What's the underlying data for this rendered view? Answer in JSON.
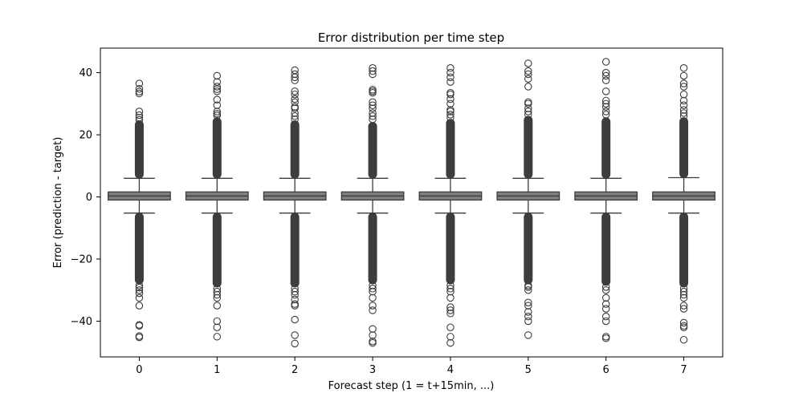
{
  "chart_data": {
    "type": "box",
    "title": "Error distribution per time step",
    "xlabel": "Forecast step (1 = t+15min, ...)",
    "ylabel": "Error (prediction - target)",
    "categories": [
      "0",
      "1",
      "2",
      "3",
      "4",
      "5",
      "6",
      "7"
    ],
    "ylim": [
      -51.5,
      47.9
    ],
    "yticks": [
      -40,
      -20,
      0,
      20,
      40
    ],
    "ytick_labels": [
      "−40",
      "−20",
      "0",
      "20",
      "40"
    ],
    "grid": false,
    "box_color": "#808080",
    "line_color": "#3d3d3d",
    "series": [
      {
        "q1": -1.0,
        "median": 0.3,
        "q3": 1.6,
        "whisker_low": -5.2,
        "whisker_high": 6.0,
        "dense_high": [
          6.0,
          24.5
        ],
        "dense_low": [
          -5.2,
          -28.0
        ],
        "outliers": [
          24.8,
          25.5,
          26.3,
          27.5,
          33.3,
          33.9,
          34.8,
          36.5,
          -28.5,
          -29.2,
          -30.0,
          -31.0,
          -32.5,
          -35.0,
          -41.2,
          -41.5,
          -44.8,
          -45.2
        ]
      },
      {
        "q1": -1.0,
        "median": 0.3,
        "q3": 1.6,
        "whisker_low": -5.2,
        "whisker_high": 6.0,
        "dense_high": [
          6.0,
          25.5
        ],
        "dense_low": [
          -5.2,
          -29.0
        ],
        "outliers": [
          26.2,
          26.8,
          27.5,
          29.5,
          31.3,
          34.0,
          34.7,
          35.5,
          37.0,
          39.0,
          -29.5,
          -30.5,
          -31.5,
          -32.5,
          -35.0,
          -40.0,
          -42.0,
          -45.0
        ]
      },
      {
        "q1": -1.0,
        "median": 0.3,
        "q3": 1.6,
        "whisker_low": -5.2,
        "whisker_high": 6.0,
        "dense_high": [
          6.0,
          24.5
        ],
        "dense_low": [
          -5.2,
          -29.0
        ],
        "outliers": [
          25.0,
          26.0,
          27.0,
          28.5,
          29.0,
          30.5,
          31.5,
          33.0,
          34.0,
          37.5,
          38.5,
          39.5,
          40.8,
          -29.5,
          -30.5,
          -31.5,
          -33.0,
          -34.5,
          -35.0,
          -39.5,
          -44.5,
          -47.2
        ]
      },
      {
        "q1": -1.0,
        "median": 0.3,
        "q3": 1.6,
        "whisker_low": -5.2,
        "whisker_high": 6.0,
        "dense_high": [
          6.0,
          24.0
        ],
        "dense_low": [
          -5.2,
          -28.0
        ],
        "outliers": [
          25.0,
          26.0,
          27.0,
          28.5,
          29.5,
          30.5,
          33.5,
          34.0,
          34.5,
          39.5,
          40.5,
          41.5,
          -28.5,
          -29.5,
          -30.5,
          -32.5,
          -35.0,
          -36.5,
          -42.5,
          -44.5,
          -46.5,
          -47.0
        ]
      },
      {
        "q1": -1.0,
        "median": 0.3,
        "q3": 1.6,
        "whisker_low": -5.2,
        "whisker_high": 6.0,
        "dense_high": [
          6.0,
          25.0
        ],
        "dense_low": [
          -5.2,
          -28.0
        ],
        "outliers": [
          25.5,
          26.5,
          27.5,
          28.0,
          30.0,
          31.5,
          33.0,
          33.5,
          37.0,
          38.5,
          40.0,
          41.5,
          -28.5,
          -29.5,
          -30.5,
          -32.5,
          -35.5,
          -36.5,
          -37.5,
          -42.0,
          -45.0,
          -47.0
        ]
      },
      {
        "q1": -1.0,
        "median": 0.3,
        "q3": 1.6,
        "whisker_low": -5.2,
        "whisker_high": 6.0,
        "dense_high": [
          6.0,
          26.0
        ],
        "dense_low": [
          -5.2,
          -28.0
        ],
        "outliers": [
          26.5,
          27.5,
          28.5,
          30.0,
          30.5,
          35.5,
          38.0,
          39.5,
          40.5,
          43.0,
          -28.5,
          -29.0,
          -30.0,
          -34.0,
          -35.0,
          -37.0,
          -38.5,
          -40.0,
          -44.5
        ]
      },
      {
        "q1": -1.0,
        "median": 0.3,
        "q3": 1.6,
        "whisker_low": -5.2,
        "whisker_high": 6.0,
        "dense_high": [
          6.0,
          25.5
        ],
        "dense_low": [
          -5.2,
          -28.5
        ],
        "outliers": [
          26.5,
          27.5,
          29.0,
          30.0,
          31.0,
          34.0,
          37.5,
          39.0,
          40.0,
          43.5,
          -29.0,
          -30.0,
          -32.5,
          -34.5,
          -36.0,
          -38.5,
          -40.0,
          -45.0,
          -45.5
        ]
      },
      {
        "q1": -1.0,
        "median": 0.3,
        "q3": 1.6,
        "whisker_low": -5.2,
        "whisker_high": 6.2,
        "dense_high": [
          6.2,
          25.5
        ],
        "dense_low": [
          -5.2,
          -29.0
        ],
        "outliers": [
          26.0,
          27.0,
          28.0,
          29.5,
          31.0,
          33.0,
          35.5,
          36.5,
          39.0,
          41.5,
          -29.5,
          -30.5,
          -31.5,
          -32.5,
          -35.0,
          -36.0,
          -40.5,
          -41.5,
          -42.0,
          -46.0
        ]
      }
    ]
  }
}
